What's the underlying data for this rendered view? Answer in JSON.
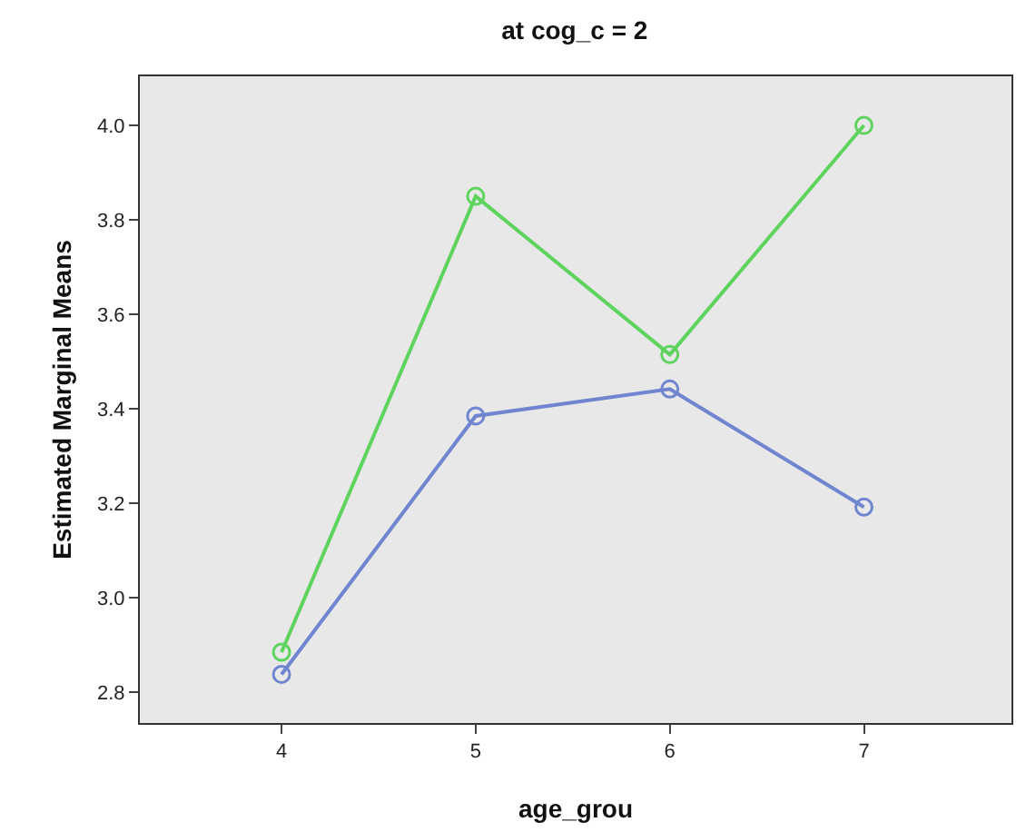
{
  "chart_data": {
    "type": "line",
    "title": "at cog_c = 2",
    "xlabel": "age_grou",
    "ylabel": "Estimated Marginal Means",
    "x": [
      4,
      5,
      6,
      7
    ],
    "series": [
      {
        "color": "#5ed35e",
        "values": [
          2.885,
          3.85,
          3.515,
          4.0
        ]
      },
      {
        "color": "#6f85cf",
        "values": [
          2.838,
          3.385,
          3.442,
          3.192
        ]
      }
    ],
    "xlim": [
      3.27,
      7.76
    ],
    "xticks": [
      4,
      5,
      6,
      7
    ],
    "ylim": [
      2.735,
      4.104
    ],
    "yticks": [
      {
        "value": 2.8,
        "label": "2.8"
      },
      {
        "value": 3.0,
        "label": "3.0"
      },
      {
        "value": 3.2,
        "label": "3.2"
      },
      {
        "value": 3.4,
        "label": "3.4"
      },
      {
        "value": 3.6,
        "label": "3.6"
      },
      {
        "value": 3.8,
        "label": "3.8"
      },
      {
        "value": 4.0,
        "label": "4.0"
      }
    ],
    "marker": "circle",
    "grid": false
  }
}
